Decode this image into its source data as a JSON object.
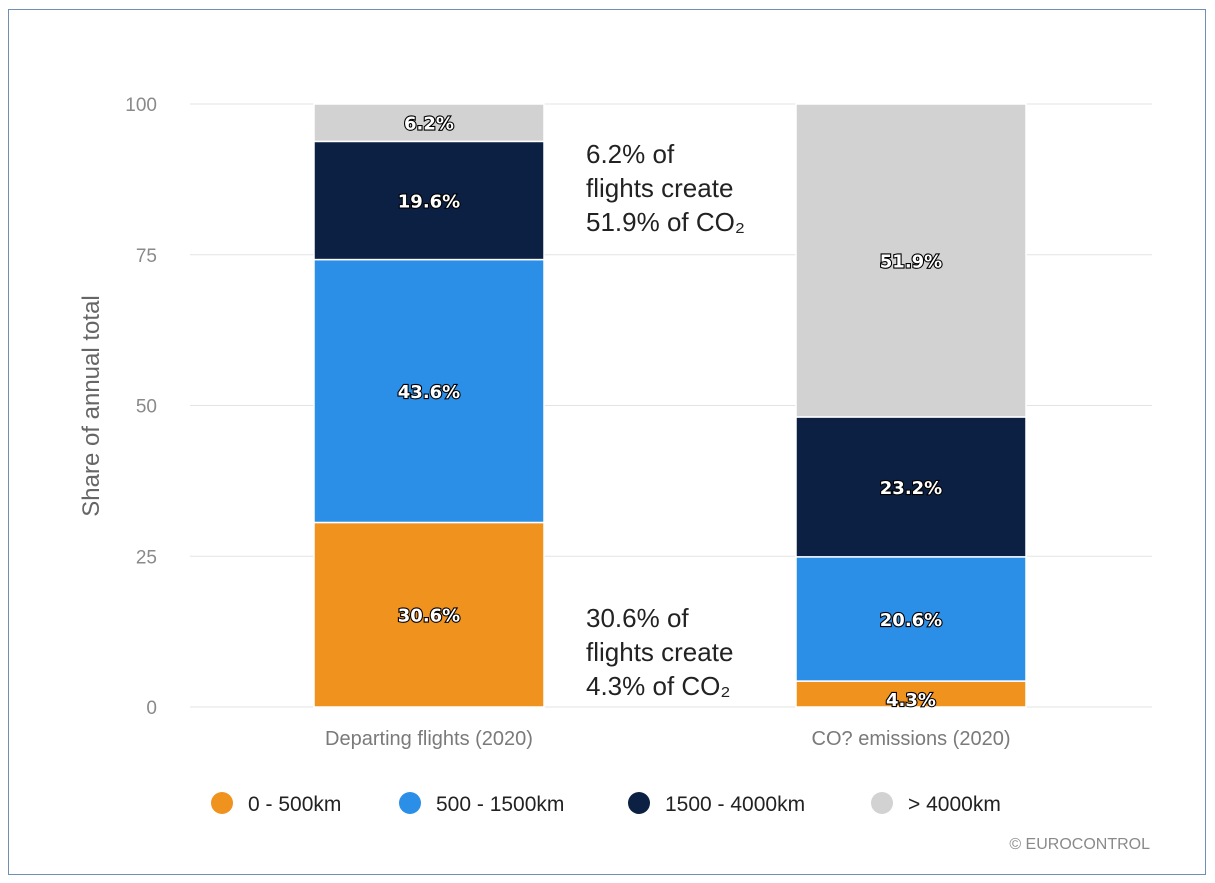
{
  "chart_data": {
    "type": "bar",
    "stacked": true,
    "ylabel": "Share of annual total",
    "ylim": [
      0,
      100
    ],
    "yticks": [
      "0",
      "25",
      "50",
      "75",
      "100"
    ],
    "categories": [
      "Departing flights (2020)",
      "CO? emissions (2020)"
    ],
    "series": [
      {
        "name": "0 - 500km",
        "color": "#f0921e",
        "values": [
          30.6,
          4.3
        ],
        "labels": [
          "30.6%",
          "4.3%"
        ]
      },
      {
        "name": "500 - 1500km",
        "color": "#2b8fe8",
        "values": [
          43.6,
          20.6
        ],
        "labels": [
          "43.6%",
          "20.6%"
        ]
      },
      {
        "name": "1500 - 4000km",
        "color": "#0c2044",
        "values": [
          19.6,
          23.2
        ],
        "labels": [
          "19.6%",
          "23.2%"
        ]
      },
      {
        "name": "> 4000km",
        "color": "#d2d2d2",
        "values": [
          6.2,
          51.9
        ],
        "labels": [
          "6.2%",
          "51.9%"
        ]
      }
    ],
    "grid": true,
    "legend": "bottom",
    "annotations": [
      {
        "lines": [
          "6.2% of",
          "flights create",
          "51.9% of CO₂"
        ]
      },
      {
        "lines": [
          "30.6% of",
          "flights create",
          "4.3% of CO₂"
        ]
      }
    ],
    "credit": "© EUROCONTROL"
  }
}
